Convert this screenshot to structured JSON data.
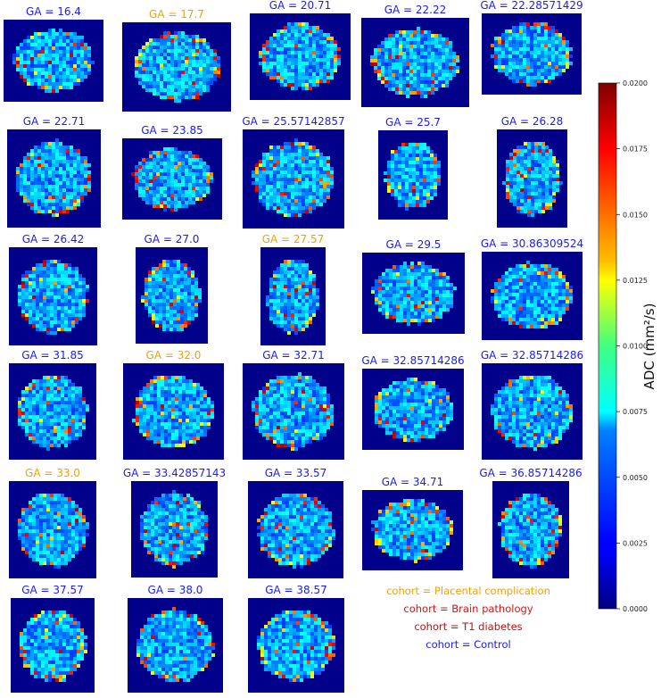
{
  "chart_data": {
    "type": "heatmap",
    "description_of_cells": "Grid of ADC maps (Apparent Diffusion Coefficient) per subject, each titled with gestational age (GA) and colored by cohort",
    "panels": [
      {
        "title": "GA = 16.4",
        "cohort": "Control"
      },
      {
        "title": "GA = 17.7",
        "cohort": "Placental complication"
      },
      {
        "title": "GA = 20.71",
        "cohort": "Control"
      },
      {
        "title": "GA = 22.22",
        "cohort": "Control"
      },
      {
        "title": "GA = 22.28571429",
        "cohort": "Control"
      },
      {
        "title": "GA = 22.71",
        "cohort": "Control"
      },
      {
        "title": "GA = 23.85",
        "cohort": "Control"
      },
      {
        "title": "GA = 25.57142857",
        "cohort": "Control"
      },
      {
        "title": "GA = 25.7",
        "cohort": "Control"
      },
      {
        "title": "GA = 26.28",
        "cohort": "Control"
      },
      {
        "title": "GA = 26.42",
        "cohort": "Control"
      },
      {
        "title": "GA = 27.0",
        "cohort": "Control"
      },
      {
        "title": "GA = 27.57",
        "cohort": "Placental complication"
      },
      {
        "title": "GA = 29.5",
        "cohort": "Control"
      },
      {
        "title": "GA = 30.86309524",
        "cohort": "Control"
      },
      {
        "title": "GA = 31.85",
        "cohort": "Control"
      },
      {
        "title": "GA = 32.0",
        "cohort": "Placental complication"
      },
      {
        "title": "GA = 32.71",
        "cohort": "Control"
      },
      {
        "title": "GA = 32.85714286",
        "cohort": "Control"
      },
      {
        "title": "GA = 32.85714286",
        "cohort": "Control"
      },
      {
        "title": "GA = 33.0",
        "cohort": "Placental complication"
      },
      {
        "title": "GA = 33.42857143",
        "cohort": "Control"
      },
      {
        "title": "GA = 33.57",
        "cohort": "Control"
      },
      {
        "title": "GA = 34.71",
        "cohort": "Control"
      },
      {
        "title": "GA = 36.85714286",
        "cohort": "Control"
      },
      {
        "title": "GA = 37.57",
        "cohort": "Control"
      },
      {
        "title": "GA = 38.0",
        "cohort": "Control"
      },
      {
        "title": "GA = 38.57",
        "cohort": "Control"
      }
    ],
    "legend": [
      {
        "label": "cohort = Placental complication",
        "color": "#f5a000"
      },
      {
        "label": "cohort = Brain pathology",
        "color": "#e01010"
      },
      {
        "label": "cohort = T1 diabetes",
        "color": "#c01010"
      },
      {
        "label": "cohort = Control",
        "color": "#1a1aff"
      }
    ],
    "colorbar": {
      "label": "ADC (mm²/s)",
      "colormap": "jet",
      "range": [
        0.0,
        0.02
      ],
      "ticks": [
        "0.0000",
        "0.0025",
        "0.0050",
        "0.0075",
        "0.0100",
        "0.0125",
        "0.0150",
        "0.0175",
        "0.0200"
      ]
    }
  },
  "colors": {
    "control": "#1a1aff",
    "placental": "#f5a000",
    "background_map": "#00008b"
  }
}
